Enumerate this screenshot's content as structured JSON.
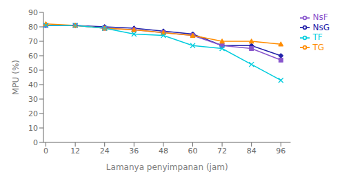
{
  "chart_data": {
    "type": "line",
    "xlabel": "Lamanya penyimpanan (jam)",
    "ylabel": "MPU  (%)",
    "x": [
      0,
      12,
      24,
      36,
      48,
      60,
      72,
      84,
      96
    ],
    "xlim": [
      -1,
      100
    ],
    "ylim": [
      0,
      90
    ],
    "xticks": [
      0,
      12,
      24,
      36,
      48,
      60,
      72,
      84,
      96
    ],
    "yticks": [
      0,
      10,
      20,
      30,
      40,
      50,
      60,
      70,
      80,
      90
    ],
    "grid": false,
    "legend": "right",
    "series": [
      {
        "name": "NsG",
        "color": "#2222AA",
        "marker": "diamond",
        "values": [
          81,
          81,
          80,
          79,
          77,
          75,
          67,
          67,
          60
        ]
      },
      {
        "name": "NsF",
        "color": "#8855CC",
        "marker": "square",
        "values": [
          81,
          81,
          79,
          78,
          76,
          74,
          67,
          65,
          57
        ]
      },
      {
        "name": "TG",
        "color": "#FF8C00",
        "marker": "triangle",
        "values": [
          82,
          81,
          79,
          78,
          76,
          74,
          70,
          70,
          68
        ]
      },
      {
        "name": "TF",
        "color": "#00CCDD",
        "marker": "x",
        "values": [
          81,
          81,
          79,
          75,
          74,
          67,
          65,
          54,
          43
        ]
      }
    ]
  }
}
